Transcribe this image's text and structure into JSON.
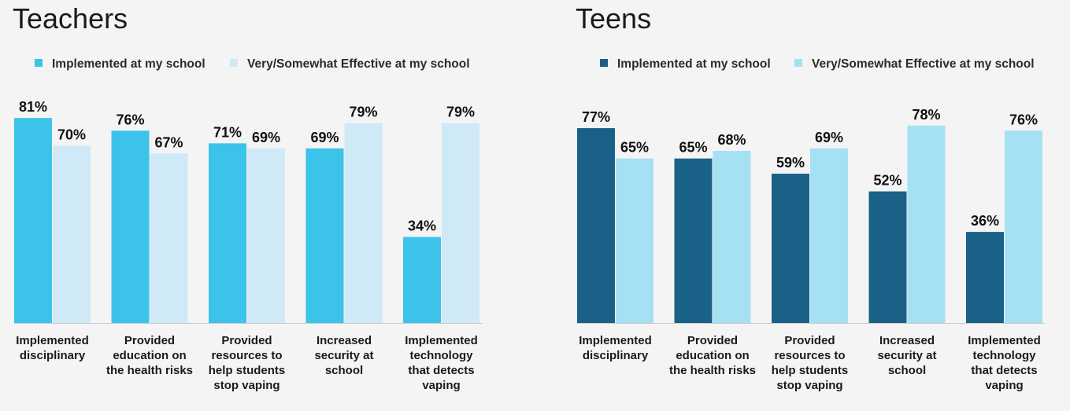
{
  "chart_data": [
    {
      "type": "bar",
      "title": "Teachers",
      "categories": [
        [
          "Implemented",
          "disciplinary"
        ],
        [
          "Provided",
          "education on",
          "the health risks"
        ],
        [
          "Provided",
          "resources to",
          "help students",
          "stop vaping"
        ],
        [
          "Increased",
          "security at",
          "school"
        ],
        [
          "Implemented",
          "technology",
          "that detects",
          "vaping"
        ]
      ],
      "series": [
        {
          "name": "Implemented at my school",
          "color": "#3cc3ea",
          "values": [
            81,
            76,
            71,
            69,
            34
          ]
        },
        {
          "name": "Very/Somewhat Effective at my school",
          "color": "#cfe9f6",
          "values": [
            70,
            67,
            69,
            79,
            79
          ]
        }
      ],
      "value_suffix": "%",
      "ylim": [
        0,
        100
      ],
      "legend_position": "top-left",
      "grid": false
    },
    {
      "type": "bar",
      "title": "Teens",
      "categories": [
        [
          "Implemented",
          "disciplinary"
        ],
        [
          "Provided",
          "education on",
          "the health risks"
        ],
        [
          "Provided",
          "resources to",
          "help students",
          "stop vaping"
        ],
        [
          "Increased",
          "security at",
          "school"
        ],
        [
          "Implemented",
          "technology",
          "that detects",
          "vaping"
        ]
      ],
      "series": [
        {
          "name": "Implemented at my school",
          "color": "#1a6188",
          "values": [
            77,
            65,
            59,
            52,
            36
          ]
        },
        {
          "name": "Very/Somewhat Effective at my school",
          "color": "#a6e0f3",
          "values": [
            65,
            68,
            69,
            78,
            76
          ]
        }
      ],
      "value_suffix": "%",
      "ylim": [
        0,
        100
      ],
      "legend_position": "top-left",
      "grid": false
    }
  ]
}
